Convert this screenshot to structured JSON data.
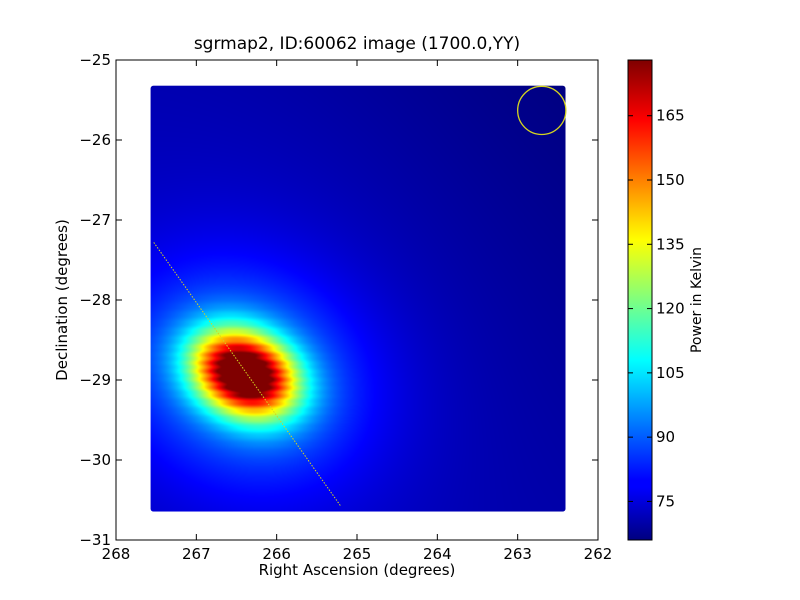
{
  "chart_data": {
    "type": "heatmap",
    "title": "sgrmap2, ID:60062 image (1700.0,YY)",
    "xlabel": "Right Ascension (degrees)",
    "ylabel": "Declination (degrees)",
    "xlim": [
      268,
      262
    ],
    "ylim": [
      -31,
      -25
    ],
    "x_ticks": [
      268,
      267,
      266,
      265,
      264,
      263,
      262
    ],
    "y_ticks": [
      -25,
      -26,
      -27,
      -28,
      -29,
      -30,
      -31
    ],
    "x_tick_labels": [
      "268",
      "267",
      "266",
      "265",
      "264",
      "263",
      "262"
    ],
    "y_tick_labels": [
      "−25",
      "−26",
      "−27",
      "−28",
      "−29",
      "−30",
      "−31"
    ],
    "image_extent": {
      "ra": [
        267.57,
        262.4
      ],
      "dec": [
        -30.65,
        -25.32
      ]
    },
    "colormap": "jet",
    "colorbar": {
      "label": "Power in Kelvin",
      "range": [
        66,
        178
      ],
      "ticks": [
        75,
        90,
        105,
        120,
        135,
        150,
        165
      ]
    },
    "peak": {
      "ra": 266.4,
      "dec": -28.92,
      "value": 178
    },
    "background_value": 70,
    "circle_marker": {
      "ra": 262.7,
      "dec": -25.63,
      "radius_deg": 0.3,
      "color": "#d4d420"
    },
    "dotted_line": {
      "from": {
        "ra": 267.53,
        "dec": -27.28
      },
      "to": {
        "ra": 265.2,
        "dec": -30.58
      },
      "color": "#d4d420"
    }
  }
}
